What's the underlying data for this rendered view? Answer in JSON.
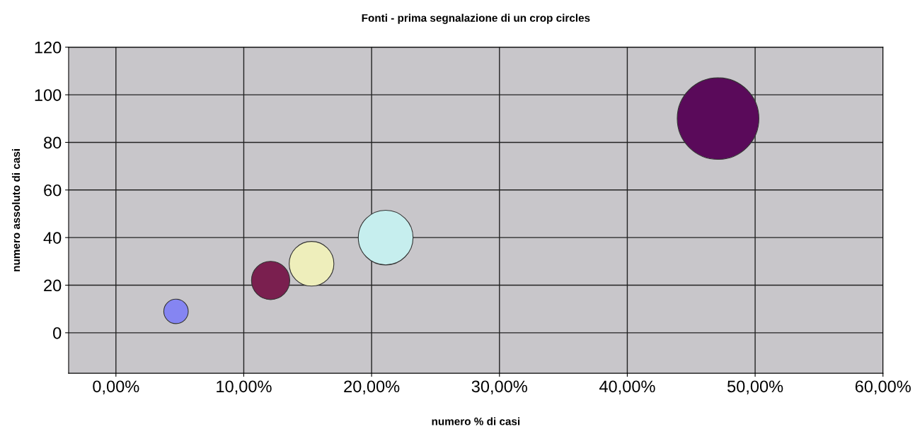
{
  "chart_data": {
    "type": "bubble",
    "title": "Fonti - prima segnalazione di un crop circles",
    "xlabel": "numero % di casi",
    "ylabel": "numero assoluto di casi",
    "x": [
      4.7,
      12.1,
      15.3,
      21.1,
      47.1
    ],
    "values": [
      9,
      22,
      29,
      40,
      90
    ],
    "sizes": [
      0.09,
      0.22,
      0.3,
      0.45,
      1
    ],
    "colors": [
      "#8585f2",
      "#7a1f4f",
      "#eeeebb",
      "#c6eeee",
      "#5a0a5a"
    ],
    "xlim": [
      -3.7,
      60
    ],
    "ylim": [
      -17,
      120
    ],
    "xticks": [
      {
        "value": 0,
        "label": "0,00%"
      },
      {
        "value": 10,
        "label": "10,00%"
      },
      {
        "value": 20,
        "label": "20,00%"
      },
      {
        "value": 30,
        "label": "30,00%"
      },
      {
        "value": 40,
        "label": "40,00%"
      },
      {
        "value": 50,
        "label": "50,00%"
      },
      {
        "value": 60,
        "label": "60,00%"
      }
    ],
    "yticks": [
      0,
      20,
      40,
      60,
      80,
      100,
      120
    ],
    "grid": true,
    "legend": false
  }
}
